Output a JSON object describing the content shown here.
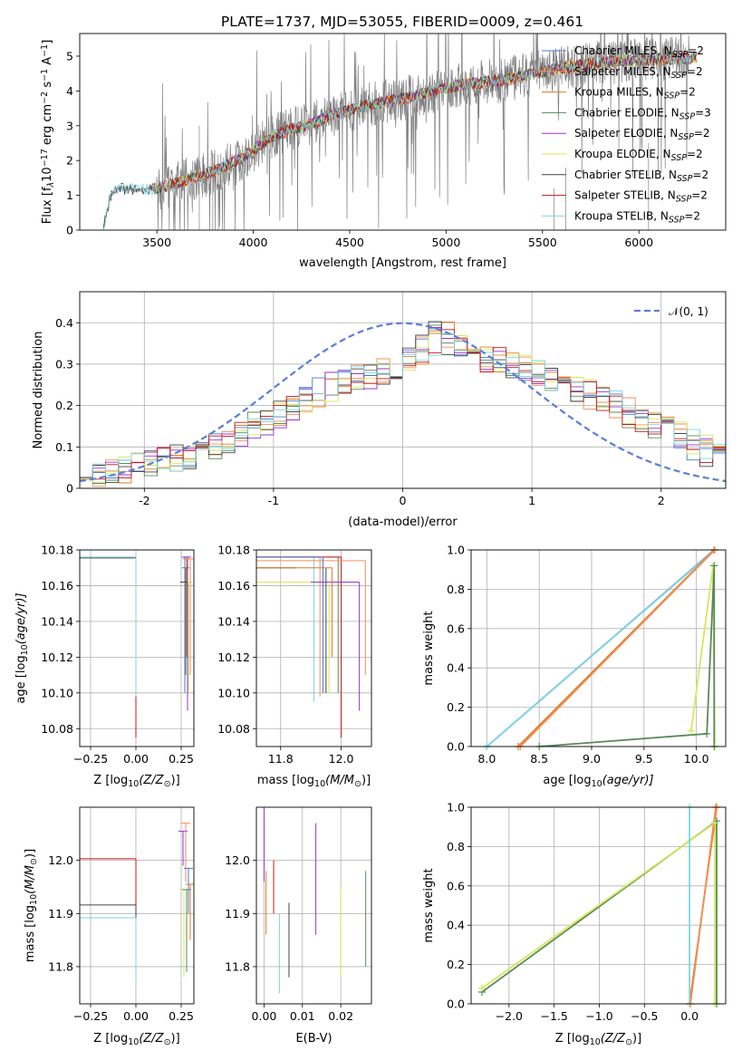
{
  "figure": {
    "title": "PLATE=1737, MJD=53055, FIBERID=0009, z=0.461"
  },
  "legend": [
    {
      "label": "Chabrier MILES, N$_{SSP}$=2",
      "text": "Chabrier MILES, N",
      "sub": "SSP",
      "tail": "=2",
      "color": "#4878cf"
    },
    {
      "label": "Salpeter MILES, N$_{SSP}$=2",
      "text": "Salpeter MILES, N",
      "sub": "SSP",
      "tail": "=2",
      "color": "#f28e5a"
    },
    {
      "label": "Kroupa MILES, N$_{SSP}$=2",
      "text": "Kroupa MILES, N",
      "sub": "SSP",
      "tail": "=2",
      "color": "#e07b20"
    },
    {
      "label": "Chabrier ELODIE, N$_{SSP}$=3",
      "text": "Chabrier ELODIE, N",
      "sub": "SSP",
      "tail": "=3",
      "color": "#5a8a5a"
    },
    {
      "label": "Salpeter ELODIE, N$_{SSP}$=2",
      "text": "Salpeter ELODIE, N",
      "sub": "SSP",
      "tail": "=2",
      "color": "#9a32cd"
    },
    {
      "label": "Kroupa ELODIE, N$_{SSP}$=2",
      "text": "Kroupa ELODIE, N",
      "sub": "SSP",
      "tail": "=2",
      "color": "#d6e85a"
    },
    {
      "label": "Chabrier STELIB, N$_{SSP}$=2",
      "text": "Chabrier STELIB, N",
      "sub": "SSP",
      "tail": "=2",
      "color": "#444444"
    },
    {
      "label": "Salpeter STELIB, N$_{SSP}$=2",
      "text": "Salpeter STELIB, N",
      "sub": "SSP",
      "tail": "=2",
      "color": "#c81414"
    },
    {
      "label": "Kroupa STELIB, N$_{SSP}$=2",
      "text": "Kroupa STELIB, N",
      "sub": "SSP",
      "tail": "=2",
      "color": "#7fd6e0"
    }
  ],
  "chart_data": [
    {
      "id": "spectrum",
      "type": "line",
      "xlabel": "wavelength [Angstrom, rest frame]",
      "ylabel_main": "Flux [f",
      "ylabel_sub": "λ",
      "ylabel_rest": "10",
      "ylabel_exp1": "−17",
      "ylabel_mid": " erg cm",
      "ylabel_exp2": "−2",
      "ylabel_mid2": " s",
      "ylabel_exp3": "−1",
      "ylabel_mid3": " A",
      "ylabel_exp4": "−1",
      "ylabel_end": "]",
      "xlim": [
        3100,
        6450
      ],
      "ylim": [
        0,
        5.65
      ],
      "xticks": [
        3500,
        4000,
        4500,
        5000,
        5500,
        6000
      ],
      "yticks": [
        0,
        1,
        2,
        3,
        4,
        5
      ],
      "data_color": "#808080",
      "continuum": {
        "x": [
          3220,
          3260,
          3300,
          3400,
          3500,
          3600,
          3700,
          3800,
          3900,
          4000,
          4100,
          4200,
          4300,
          4400,
          4500,
          4600,
          4700,
          4800,
          4900,
          5000,
          5100,
          5200,
          5300,
          5400,
          5500,
          5600,
          5700,
          5800,
          5900,
          6000,
          6100,
          6200,
          6300
        ],
        "y": [
          0,
          1.0,
          1.2,
          1.15,
          1.2,
          1.35,
          1.5,
          1.7,
          1.95,
          2.3,
          2.7,
          2.9,
          3.05,
          3.3,
          3.45,
          3.6,
          3.7,
          3.8,
          3.95,
          4.1,
          4.2,
          4.25,
          4.3,
          4.45,
          4.55,
          4.65,
          4.75,
          4.8,
          4.85,
          4.9,
          4.9,
          4.95,
          4.95
        ]
      }
    },
    {
      "id": "residuals",
      "type": "histogram",
      "xlabel": "(data-model)/error",
      "ylabel": "Normed distribution",
      "xlim": [
        -2.5,
        2.5
      ],
      "ylim": [
        0,
        0.475
      ],
      "xticks": [
        -2,
        -1,
        0,
        1,
        2
      ],
      "yticks": [
        0,
        0.1,
        0.2,
        0.3,
        0.4
      ],
      "gauss_label": "𝒩(0, 1)",
      "gauss_color": "#5a7fd6",
      "bin_width": 0.1,
      "base_profile": {
        "x": [
          -2.5,
          -2.0,
          -1.5,
          -1.0,
          -0.5,
          0.0,
          0.3,
          0.5,
          1.0,
          1.5,
          2.0,
          2.5
        ],
        "y": [
          0.03,
          0.055,
          0.09,
          0.17,
          0.255,
          0.29,
          0.375,
          0.33,
          0.28,
          0.22,
          0.15,
          0.065
        ]
      }
    },
    {
      "id": "z-age",
      "type": "step",
      "xlabel_main": "Z [log",
      "xlabel_sub": "10",
      "xlabel_rest": "(Z/Z",
      "xlabel_sub2": "⊙",
      "xlabel_end": ")]",
      "ylabel_main": "age  [log",
      "ylabel_sub": "10",
      "ylabel_rest": "(age/yr)]",
      "xlim": [
        -0.31,
        0.32
      ],
      "ylim": [
        10.07,
        10.18
      ],
      "xticks": [
        -0.25,
        0.0,
        0.25
      ],
      "xticklabels": [
        "−0.25",
        "0.00",
        "0.25"
      ],
      "yticks": [
        10.08,
        10.1,
        10.12,
        10.14,
        10.16,
        10.18
      ],
      "yticklabels": [
        "10.08",
        "10.10",
        "10.12",
        "10.14",
        "10.16",
        "10.18"
      ]
    },
    {
      "id": "mass-age",
      "type": "step",
      "xlabel_main": "mass [log",
      "xlabel_sub": "10",
      "xlabel_rest": "(M/M",
      "xlabel_sub2": "⊙",
      "xlabel_end": ")]",
      "xlim": [
        11.72,
        12.1
      ],
      "ylim": [
        10.07,
        10.18
      ],
      "xticks": [
        11.8,
        12.0
      ],
      "xticklabels": [
        "11.8",
        "12.0"
      ],
      "yticks": [
        10.08,
        10.1,
        10.12,
        10.14,
        10.16,
        10.18
      ],
      "yticklabels": [
        "10.08",
        "10.10",
        "10.12",
        "10.14",
        "10.16",
        "10.18"
      ]
    },
    {
      "id": "age-weight",
      "type": "line",
      "xlabel_main": "age  [log",
      "xlabel_sub": "10",
      "xlabel_rest": "(age/yr)]",
      "ylabel": "mass weight",
      "xlim": [
        7.85,
        10.28
      ],
      "ylim": [
        0,
        1
      ],
      "xticks": [
        8.0,
        8.5,
        9.0,
        9.5,
        10.0
      ],
      "xticklabels": [
        "8.0",
        "8.5",
        "9.0",
        "9.5",
        "10.0"
      ],
      "yticks": [
        0,
        0.2,
        0.4,
        0.6,
        0.8,
        1.0
      ],
      "yticklabels": [
        "0.0",
        "0.2",
        "0.4",
        "0.6",
        "0.8",
        "1.0"
      ],
      "series": [
        {
          "color": "#4878cf",
          "x": [
            8.0,
            10.17
          ],
          "y": [
            0.0,
            1.0
          ]
        },
        {
          "color": "#7fd6e0",
          "x": [
            8.0,
            10.175
          ],
          "y": [
            0.0,
            1.0
          ]
        },
        {
          "color": "#e07b20",
          "x": [
            8.3,
            10.17
          ],
          "y": [
            0.0,
            1.0
          ]
        },
        {
          "color": "#f28e5a",
          "x": [
            8.32,
            10.175
          ],
          "y": [
            0.0,
            1.0
          ]
        },
        {
          "color": "#d6e85a",
          "x": [
            9.95,
            10.16,
            10.175
          ],
          "y": [
            0.08,
            0.92,
            0.0
          ]
        },
        {
          "color": "#5a8a5a",
          "x": [
            8.5,
            10.1,
            10.17,
            10.17
          ],
          "y": [
            0.0,
            0.065,
            0.92,
            0.0
          ]
        }
      ]
    },
    {
      "id": "z-mass",
      "type": "step",
      "xlabel_main": "Z [log",
      "xlabel_sub": "10",
      "xlabel_rest": "(Z/Z",
      "xlabel_sub2": "⊙",
      "xlabel_end": ")]",
      "ylabel_main": "mass [log",
      "ylabel_sub": "10",
      "ylabel_rest": "(M/M",
      "ylabel_sub2": "⊙",
      "ylabel_end": ")]",
      "xlim": [
        -0.31,
        0.32
      ],
      "ylim": [
        11.73,
        12.1
      ],
      "xticks": [
        -0.25,
        0.0,
        0.25
      ],
      "xticklabels": [
        "−0.25",
        "0.00",
        "0.25"
      ],
      "yticks": [
        11.8,
        11.9,
        12.0
      ],
      "yticklabels": [
        "11.8",
        "11.9",
        "12.0"
      ]
    },
    {
      "id": "ebv-mass",
      "type": "errorbar",
      "xlabel": "E(B-V)",
      "xlim": [
        -0.002,
        0.028
      ],
      "ylim": [
        11.73,
        12.1
      ],
      "xticks": [
        0.0,
        0.01,
        0.02
      ],
      "xticklabels": [
        "0.00",
        "0.01",
        "0.02"
      ],
      "yticks": [
        11.8,
        11.9,
        12.0
      ],
      "yticklabels": [
        "11.8",
        "11.9",
        "12.0"
      ],
      "bars": [
        {
          "color": "#9a32cd",
          "x": 0.0,
          "y0": 11.96,
          "y1": 12.1
        },
        {
          "color": "#e07b20",
          "x": 0.0005,
          "y0": 11.86,
          "y1": 11.98
        },
        {
          "color": "#c81414",
          "x": 0.0025,
          "y0": 11.9,
          "y1": 12.0
        },
        {
          "color": "#7fd6e0",
          "x": 0.004,
          "y0": 11.75,
          "y1": 11.9
        },
        {
          "color": "#444444",
          "x": 0.0065,
          "y0": 11.78,
          "y1": 11.92
        },
        {
          "color": "#9a32cd",
          "x": 0.0135,
          "y0": 11.86,
          "y1": 12.07
        },
        {
          "color": "#d6e85a",
          "x": 0.02,
          "y0": 11.78,
          "y1": 11.95
        },
        {
          "color": "#5a8a5a",
          "x": 0.0265,
          "y0": 11.8,
          "y1": 11.98
        }
      ]
    },
    {
      "id": "z-weight",
      "type": "line",
      "xlabel_main": "Z [log",
      "xlabel_sub": "10",
      "xlabel_rest": "(Z/Z",
      "xlabel_sub2": "⊙",
      "xlabel_end": ")]",
      "ylabel": "mass weight",
      "xlim": [
        -2.42,
        0.4
      ],
      "ylim": [
        0,
        1
      ],
      "xticks": [
        -2.0,
        -1.5,
        -1.0,
        -0.5,
        0.0
      ],
      "xticklabels": [
        "−2.0",
        "−1.5",
        "−1.0",
        "−0.5",
        "0.0"
      ],
      "yticks": [
        0,
        0.2,
        0.4,
        0.6,
        0.8,
        1.0
      ],
      "yticklabels": [
        "0.0",
        "0.2",
        "0.4",
        "0.6",
        "0.8",
        "1.0"
      ],
      "series": [
        {
          "color": "#5a8a5a",
          "x": [
            -2.3,
            0.3,
            0.3
          ],
          "y": [
            0.06,
            0.93,
            0.0
          ]
        },
        {
          "color": "#d6e85a",
          "x": [
            -2.3,
            0.28,
            0.28
          ],
          "y": [
            0.08,
            0.92,
            0.0
          ]
        },
        {
          "color": "#e07b20",
          "x": [
            0.0,
            0.3
          ],
          "y": [
            0.0,
            1.0
          ]
        },
        {
          "color": "#7fd6e0",
          "x": [
            0.0,
            0.0
          ],
          "y": [
            0.0,
            1.0
          ]
        },
        {
          "color": "#f28e5a",
          "x": [
            0.01,
            0.29
          ],
          "y": [
            0.0,
            1.0
          ]
        }
      ]
    }
  ]
}
